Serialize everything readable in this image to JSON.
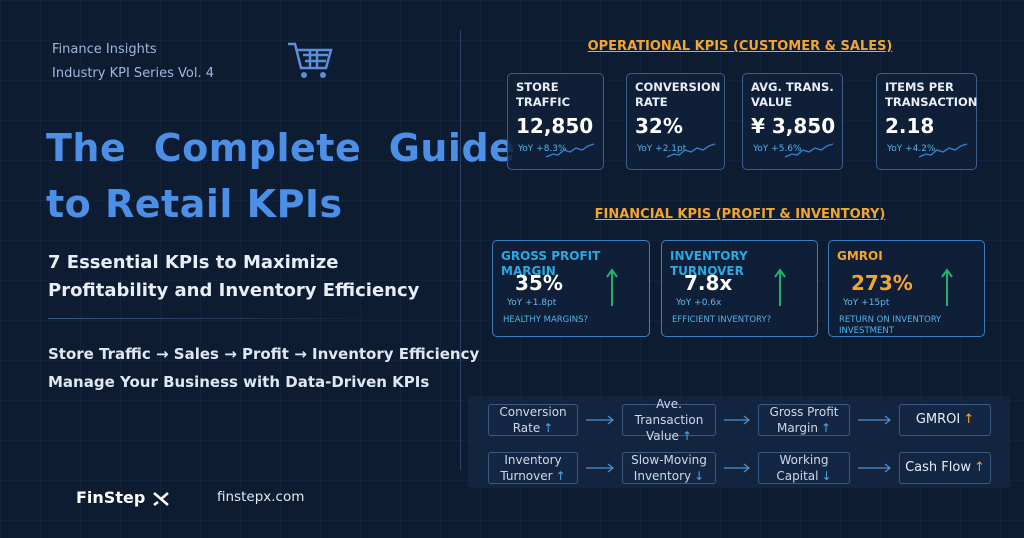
{
  "header": {
    "series": "Finance Insights",
    "volume": "Industry KPI Series  Vol. 4"
  },
  "title": [
    "The  Complete  Guide",
    "to Retail KPIs"
  ],
  "subtitle": [
    "7 Essential KPIs to Maximize",
    "Profitability and Inventory Efficiency"
  ],
  "taglines": [
    "Store Traffic → Sales → Profit → Inventory Efficiency",
    "Manage Your Business with Data-Driven KPIs"
  ],
  "brand": {
    "name": "FinStep",
    "url": "finstepx.com"
  },
  "operational": {
    "heading": "OPERATIONAL KPIS (CUSTOMER & SALES)",
    "cards": [
      {
        "label": "STORE TRAFFIC",
        "value": "12,850",
        "change": "YoY +8.3%"
      },
      {
        "label": "CONVERSION RATE",
        "value": "32%",
        "change": "YoY +2.1pt"
      },
      {
        "label": "AVG. TRANS. VALUE",
        "value": "¥ 3,850",
        "change": "YoY +5.6%"
      },
      {
        "label": "ITEMS PER TRANSACTION",
        "value": "2.18",
        "change": "YoY +4.2%"
      }
    ]
  },
  "financial": {
    "heading": "FINANCIAL KPIS (PROFIT & INVENTORY)",
    "cards": [
      {
        "label": "GROSS PROFIT MARGIN",
        "value": "35%",
        "change": "YoY +1.8pt",
        "note": "HEALTHY MARGINS?"
      },
      {
        "label": "INVENTORY TURNOVER",
        "value": "7.8x",
        "change": "YoY +0.6x",
        "note": "EFFICIENT INVENTORY?"
      },
      {
        "label": "GMROI",
        "value": "273%",
        "change": "YoY +15pt",
        "note": "RETURN ON INVENTORY INVESTMENT"
      }
    ]
  },
  "flows": [
    [
      {
        "text": "Conversion Rate",
        "arrow": "↑"
      },
      {
        "text": "Ave. Transaction Value",
        "arrow": "↑"
      },
      {
        "text": "Gross Profit Margin",
        "arrow": "↑"
      },
      {
        "text": "GMROI",
        "arrow": "↑"
      }
    ],
    [
      {
        "text": "Inventory Turnover",
        "arrow": "↑"
      },
      {
        "text": "Slow-Moving Inventory",
        "arrow": "↓"
      },
      {
        "text": "Working Capital",
        "arrow": "↓"
      },
      {
        "text": "Cash Flow",
        "arrow": "↑"
      }
    ]
  ]
}
